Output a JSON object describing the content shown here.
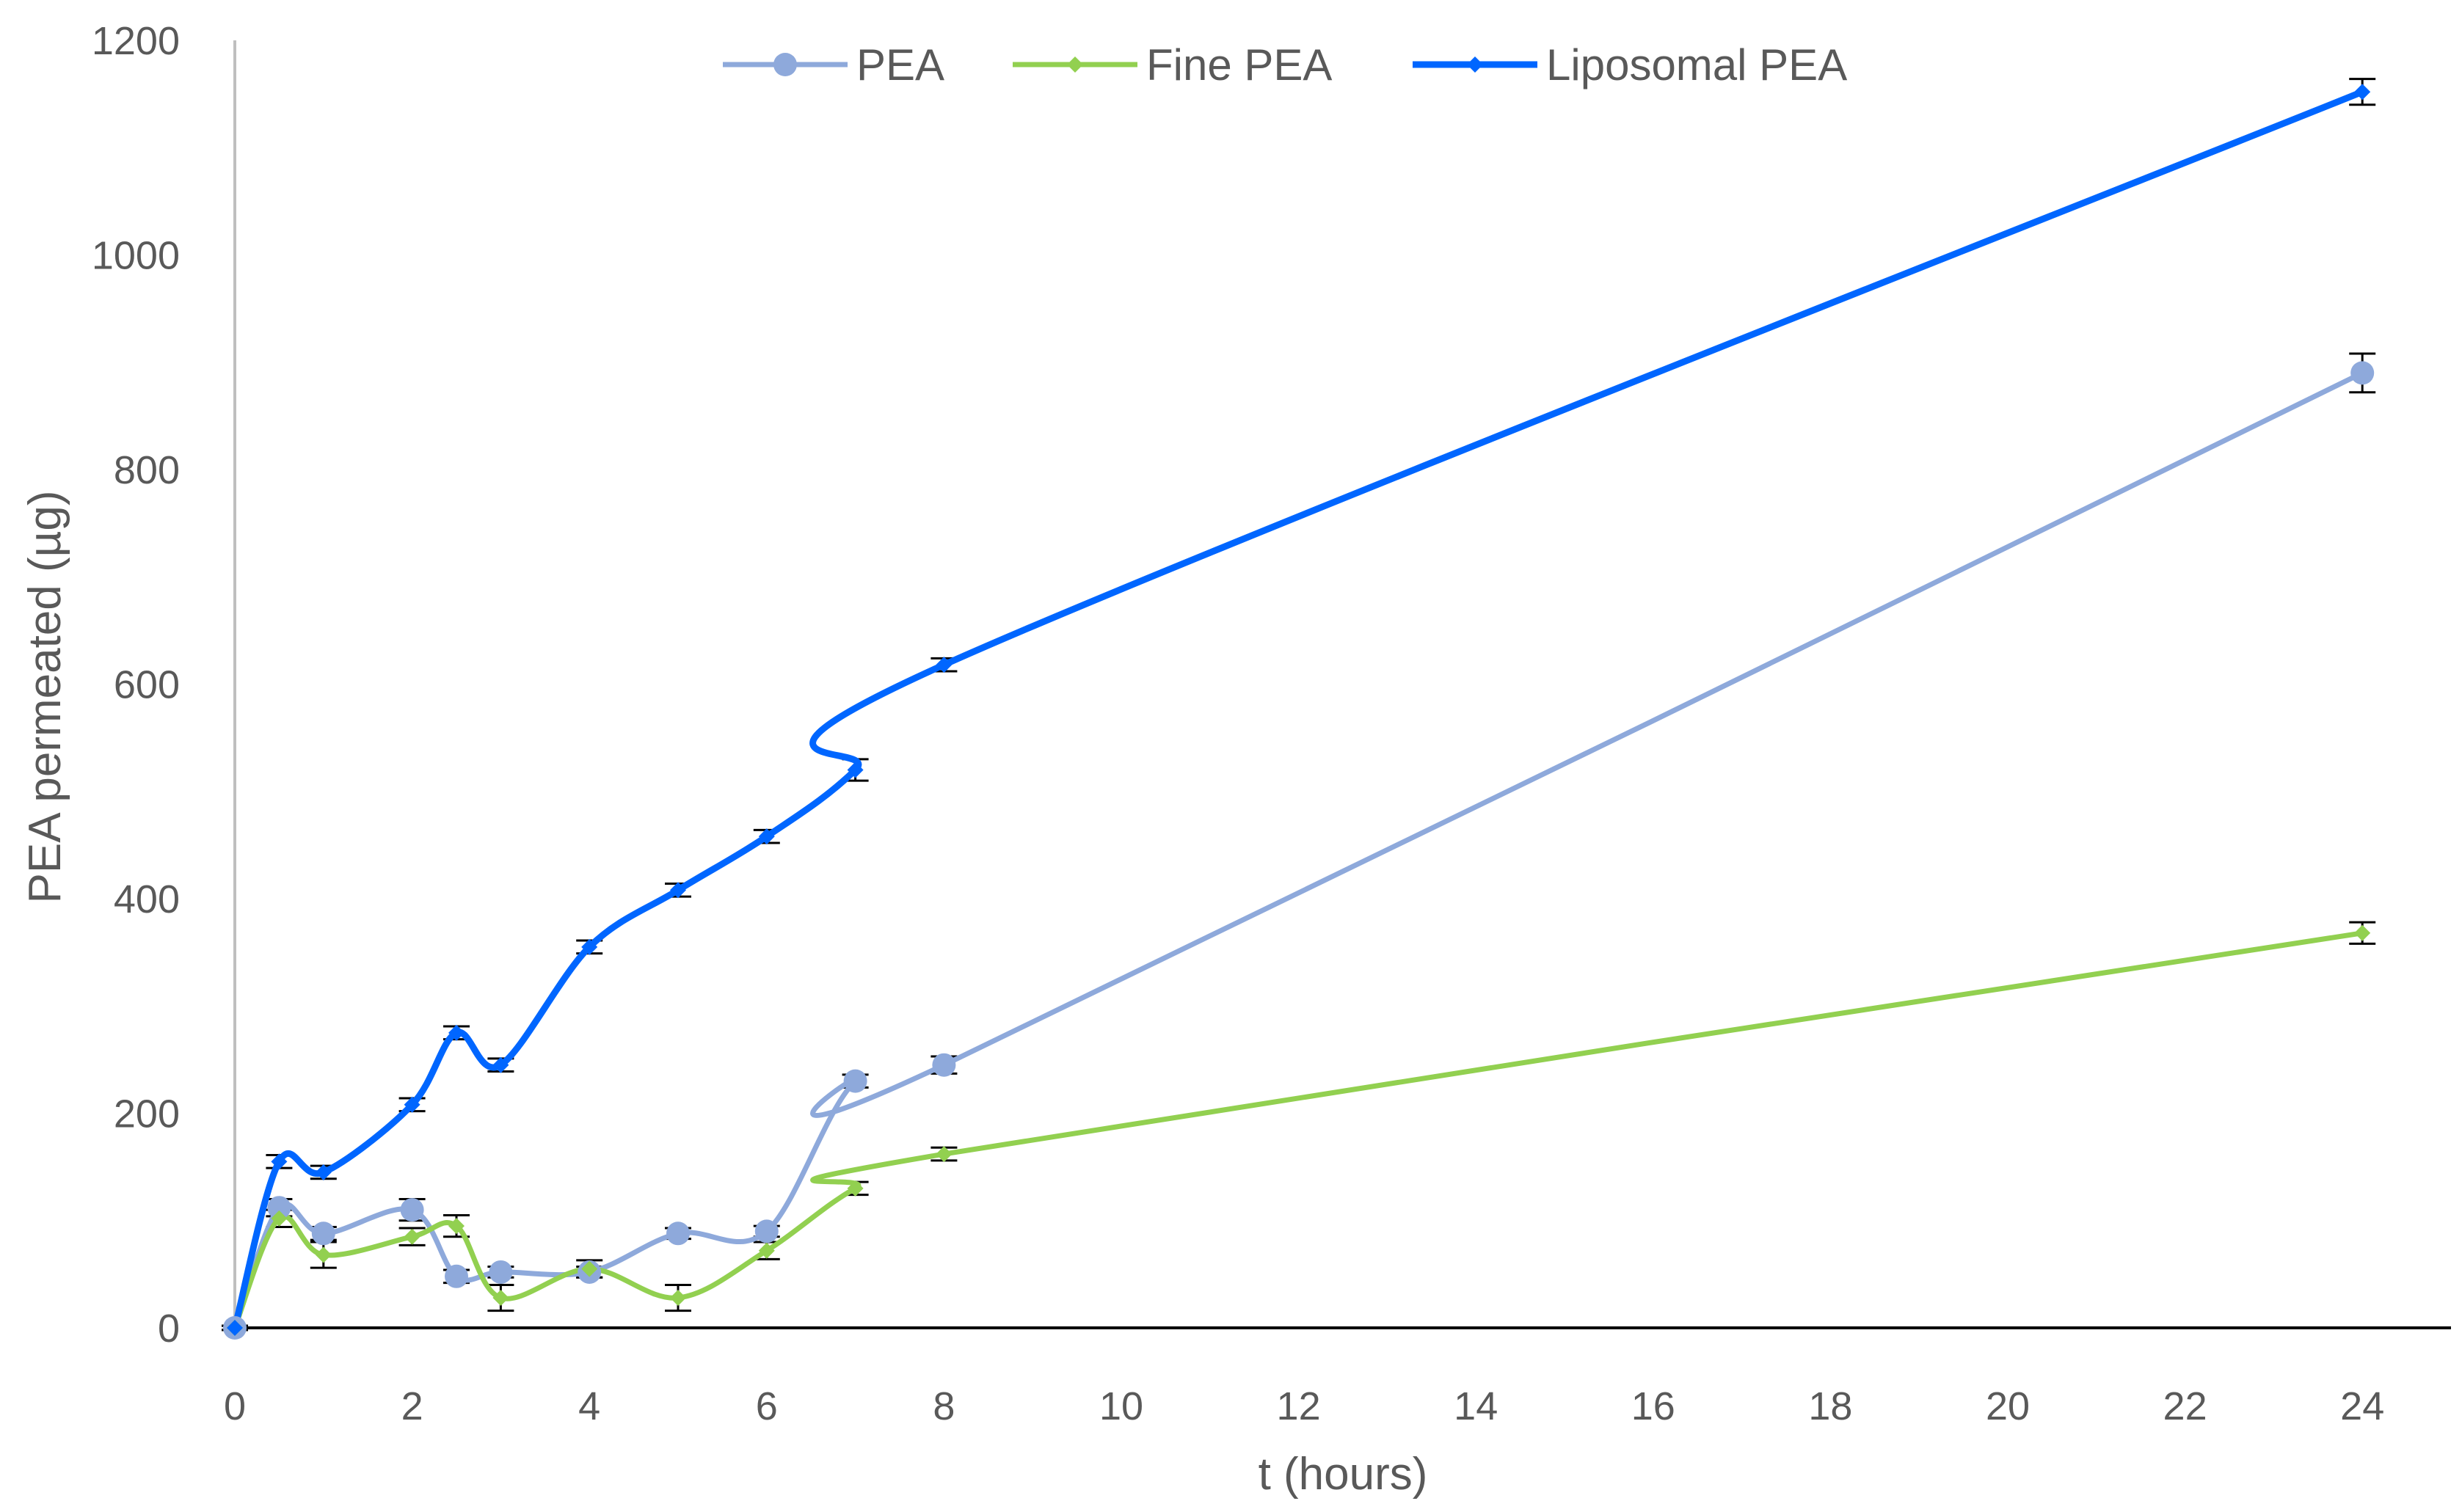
{
  "chart_data": {
    "type": "line",
    "title": "",
    "xlabel": "t (hours)",
    "ylabel": "PEA permeated  (µg)",
    "x_ticks": [
      0,
      2,
      4,
      6,
      8,
      10,
      12,
      14,
      16,
      18,
      20,
      22,
      24
    ],
    "x_tick_labels": [
      "0",
      "2",
      "4",
      "6",
      "8",
      "10",
      "12",
      "14",
      "16",
      "18",
      "20",
      "22",
      "24"
    ],
    "y_ticks": [
      0,
      200,
      400,
      600,
      800,
      1000,
      1200
    ],
    "y_tick_labels": [
      "0",
      "200",
      "400",
      "600",
      "800",
      "1000",
      "1200"
    ],
    "xlim": [
      0,
      25
    ],
    "ylim": [
      0,
      1200
    ],
    "grid": false,
    "legend": {
      "position": "top",
      "entries": [
        "PEA",
        "Fine PEA",
        "Liposomal PEA"
      ]
    },
    "x": [
      0,
      0.5,
      1,
      2,
      2.5,
      3,
      4,
      5,
      6,
      7,
      8,
      24
    ],
    "series": [
      {
        "name": "PEA",
        "color": "#8EA9DB",
        "marker": "circle",
        "values": [
          0,
          112,
          88,
          110,
          48,
          52,
          52,
          88,
          90,
          230,
          245,
          890
        ],
        "errors": [
          2,
          8,
          6,
          10,
          6,
          5,
          5,
          5,
          5,
          6,
          8,
          18
        ]
      },
      {
        "name": "Fine PEA",
        "color": "#92D050",
        "marker": "diamond",
        "values": [
          0,
          102,
          68,
          85,
          95,
          28,
          55,
          28,
          72,
          130,
          162,
          368
        ],
        "errors": [
          2,
          8,
          12,
          8,
          10,
          12,
          8,
          12,
          8,
          6,
          6,
          10
        ]
      },
      {
        "name": "Liposomal PEA",
        "color": "#0066FF",
        "marker": "diamond",
        "values": [
          0,
          155,
          145,
          208,
          275,
          245,
          355,
          408,
          458,
          520,
          618,
          1152
        ],
        "errors": [
          2,
          6,
          6,
          6,
          6,
          6,
          6,
          6,
          6,
          10,
          6,
          12
        ]
      }
    ]
  }
}
